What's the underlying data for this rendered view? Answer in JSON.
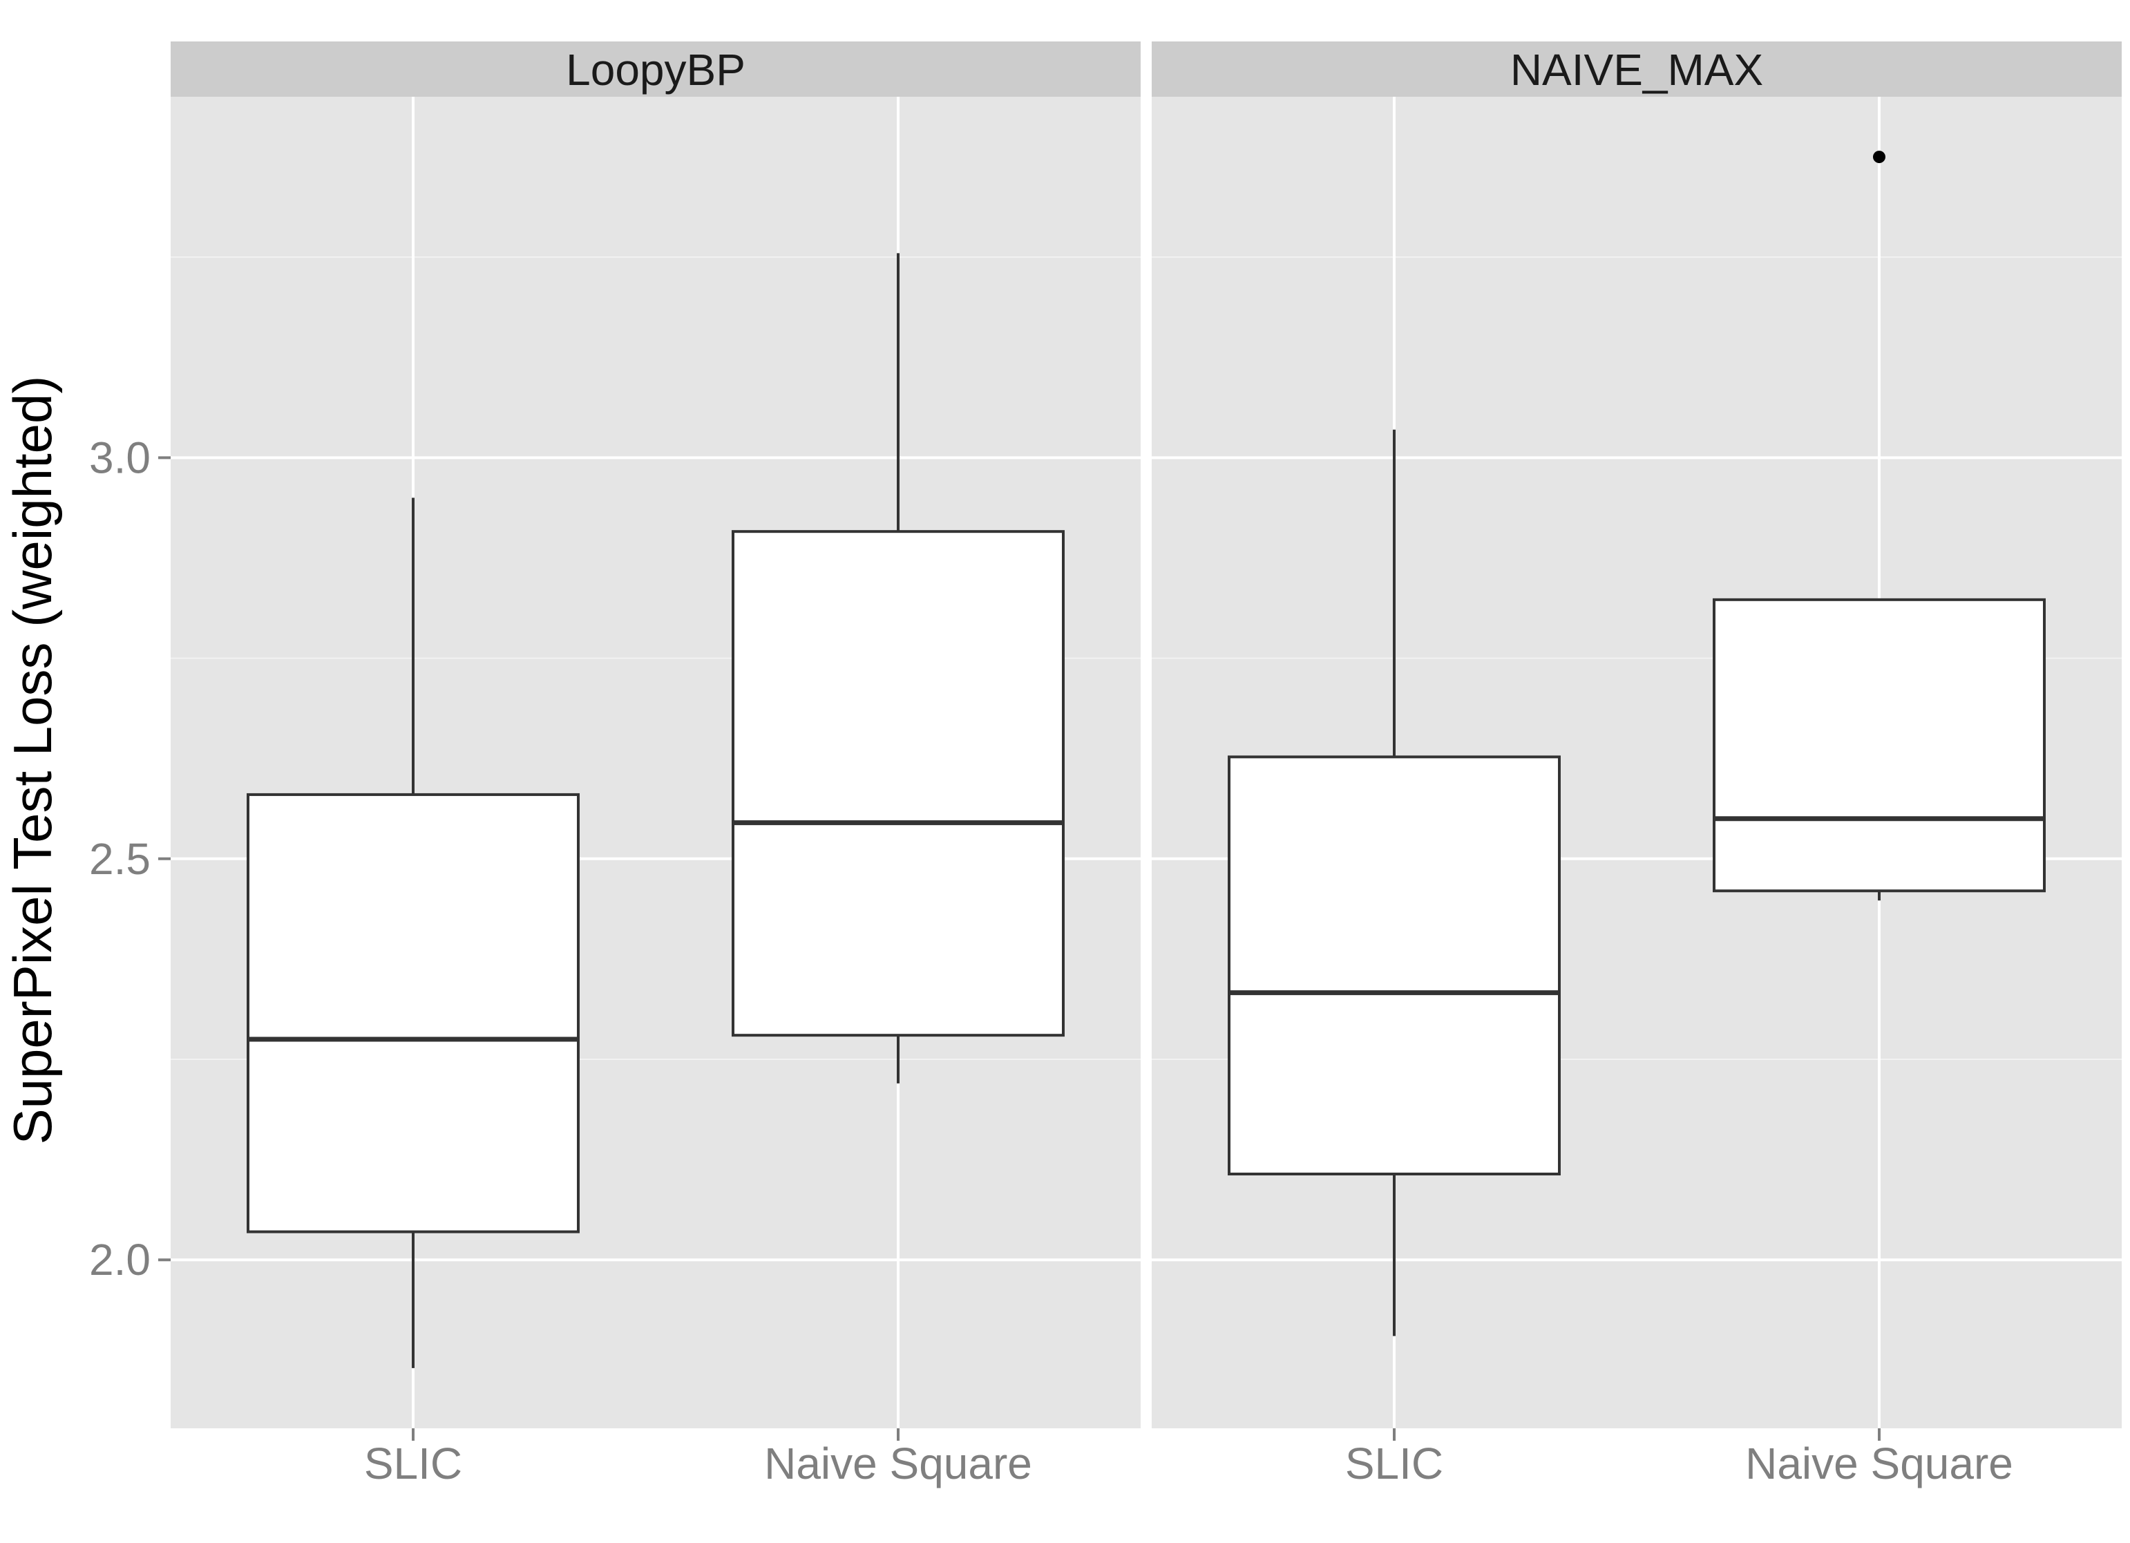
{
  "chart_data": {
    "type": "boxplot",
    "ylabel": "SuperPixel Test Loss (weighted)",
    "xlabel": "",
    "ylim": [
      1.79,
      3.45
    ],
    "y_ticks": [
      2.0,
      2.5,
      3.0
    ],
    "y_tick_labels": [
      "2.0",
      "2.5",
      "3.0"
    ],
    "y_minor_ticks": [
      2.25,
      2.75,
      3.25
    ],
    "categories": [
      "SLIC",
      "Naive Square"
    ],
    "grid": true,
    "colors": {
      "panel_background": "#e5e5e5",
      "strip_background": "#cccccc",
      "box_fill": "#ffffff",
      "box_line": "#333333",
      "outlier": "#000000"
    },
    "facets": [
      {
        "label": "LoopyBP",
        "boxes": [
          {
            "category": "SLIC",
            "whisker_low": 1.865,
            "q1": 2.035,
            "median": 2.275,
            "q3": 2.58,
            "whisker_high": 2.95,
            "outliers": []
          },
          {
            "category": "Naive Square",
            "whisker_low": 2.22,
            "q1": 2.28,
            "median": 2.545,
            "q3": 2.908,
            "whisker_high": 3.255,
            "outliers": []
          }
        ]
      },
      {
        "label": "NAIVE_MAX",
        "boxes": [
          {
            "category": "SLIC",
            "whisker_low": 1.905,
            "q1": 2.107,
            "median": 2.333,
            "q3": 2.627,
            "whisker_high": 3.035,
            "outliers": []
          },
          {
            "category": "Naive Square",
            "whisker_low": 2.448,
            "q1": 2.46,
            "median": 2.55,
            "q3": 2.823,
            "whisker_high": 2.823,
            "outliers": [
              3.375
            ]
          }
        ]
      }
    ]
  }
}
